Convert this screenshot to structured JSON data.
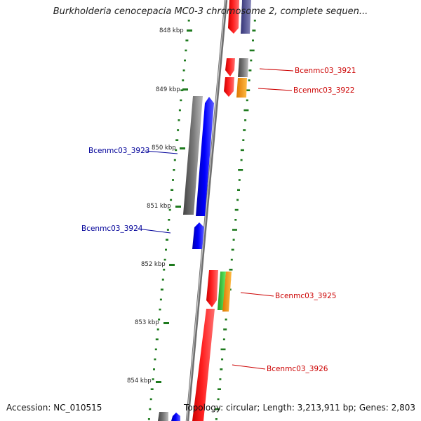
{
  "title": "Burkholderia cenocepacia MC0-3 chromosome 2, complete sequen...",
  "footer": {
    "accession": "Accession: NC_010515",
    "topology": "Topology: circular;",
    "length": "Length: 3,213,911 bp;",
    "genes": "Genes: 2,803"
  },
  "colors": {
    "backbone": "#8c8c8c",
    "forward_label": "#000099",
    "reverse_label": "#cc0000",
    "gc_ticks": "#1e7a1e",
    "red": "#ff0000",
    "blue": "#0000ff",
    "gray": "#666666",
    "orange": "#ff9900",
    "green": "#33cc33",
    "slate": "#555599"
  },
  "scale_ticks": [
    "848 kbp",
    "849 kbp",
    "850 kbp",
    "851 kbp",
    "852 kbp",
    "853 kbp",
    "854 kbp"
  ],
  "gene_labels": [
    {
      "text": "Bcenmc03_3921",
      "strand": "reverse"
    },
    {
      "text": "Bcenmc03_3922",
      "strand": "reverse"
    },
    {
      "text": "Bcenmc03_3923",
      "strand": "forward"
    },
    {
      "text": "Bcenmc03_3924",
      "strand": "forward"
    },
    {
      "text": "Bcenmc03_3925",
      "strand": "reverse"
    },
    {
      "text": "Bcenmc03_3926",
      "strand": "reverse"
    }
  ]
}
